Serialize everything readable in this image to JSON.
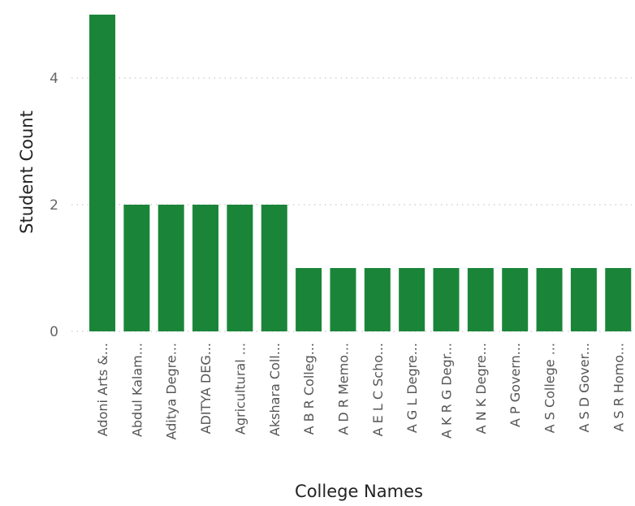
{
  "chart_data": {
    "type": "bar",
    "title": "",
    "xlabel": "College Names",
    "ylabel": "Student Count",
    "ylim": [
      0,
      5
    ],
    "yticks": [
      0,
      2,
      4
    ],
    "grid": "horizontal-dotted",
    "bar_color": "#1a8539",
    "categories": [
      "Adoni Arts &...",
      "Abdul Kalam...",
      "Aditya Degre...",
      "ADITYA DEG...",
      "Agricultural ...",
      "Akshara Coll...",
      "A B R Colleg...",
      "A D R Memo...",
      "A E L C Scho...",
      "A G L Degre...",
      "A K R G Degr...",
      "A N K Degre...",
      "A P Govern...",
      "A S College ...",
      "A S D Gover...",
      "A S R Homo..."
    ],
    "values": [
      5,
      2,
      2,
      2,
      2,
      2,
      1,
      1,
      1,
      1,
      1,
      1,
      1,
      1,
      1,
      1
    ]
  }
}
